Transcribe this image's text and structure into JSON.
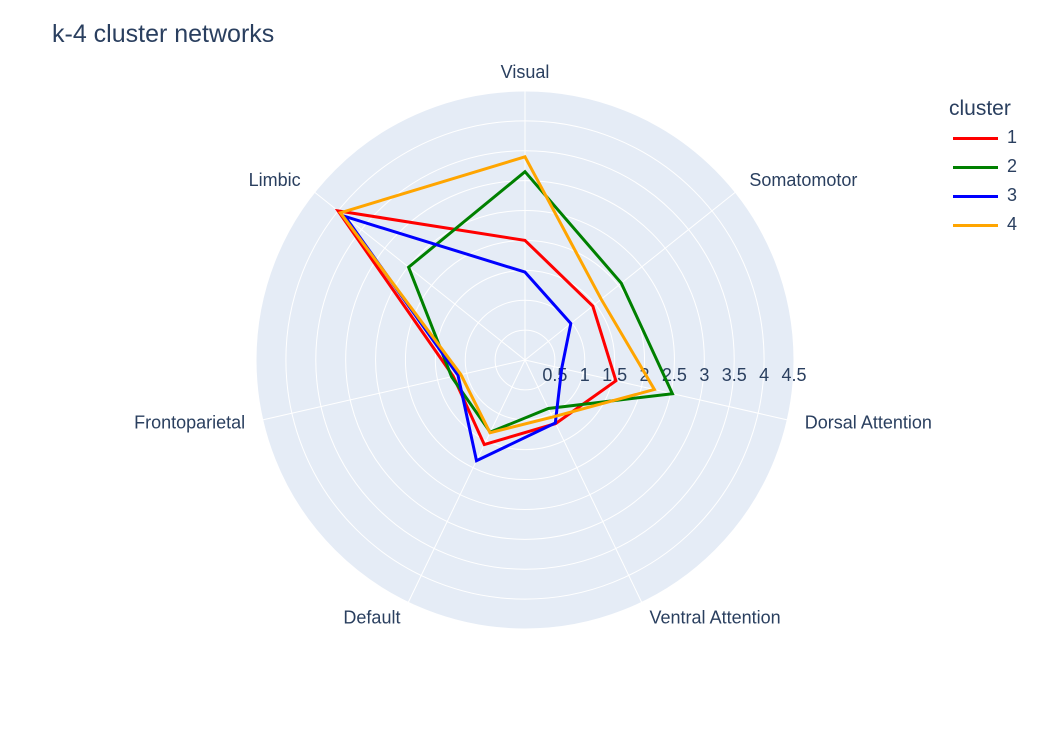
{
  "title": "k-4 cluster networks",
  "legend": {
    "title": "cluster"
  },
  "colors": {
    "background": "#e5ecf6",
    "grid": "#ffffff",
    "text": "#2a3f5f"
  },
  "chart_data": {
    "type": "radar",
    "title": "k-4 cluster networks",
    "categories": [
      "Visual",
      "Somatomotor",
      "Dorsal Attention",
      "Ventral Attention",
      "Default",
      "Frontoparietal",
      "Limbic"
    ],
    "radial_ticks": [
      "0.5",
      "1",
      "1.5",
      "2",
      "2.5",
      "3",
      "3.5",
      "4",
      "4.5"
    ],
    "radial_range": [
      0,
      4.5
    ],
    "grid": true,
    "legend_position": "top-right",
    "series": [
      {
        "name": "1",
        "color": "#ff0000",
        "values": [
          2.0,
          1.45,
          1.56,
          1.18,
          1.57,
          1.23,
          4.0
        ]
      },
      {
        "name": "2",
        "color": "#008000",
        "values": [
          3.15,
          2.06,
          2.53,
          0.9,
          1.34,
          1.26,
          2.49
        ]
      },
      {
        "name": "3",
        "color": "#0000ff",
        "values": [
          1.47,
          0.98,
          0.63,
          1.17,
          1.87,
          1.15,
          3.85
        ]
      },
      {
        "name": "4",
        "color": "#ffa500",
        "values": [
          3.4,
          1.63,
          2.22,
          1.06,
          1.35,
          1.1,
          3.95
        ]
      }
    ]
  }
}
